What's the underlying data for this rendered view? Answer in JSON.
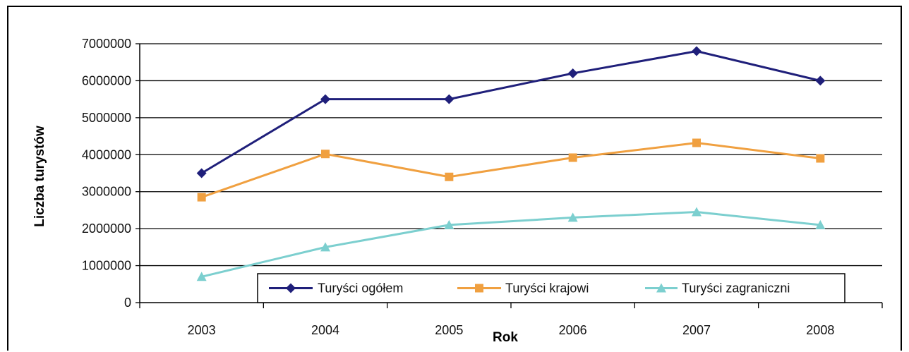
{
  "chart_data": {
    "type": "line",
    "title": "",
    "xlabel": "Rok",
    "ylabel": "Liczba turystów",
    "ylim": [
      0,
      7000000
    ],
    "yticks": [
      "0",
      "1000000",
      "2000000",
      "3000000",
      "4000000",
      "5000000",
      "6000000",
      "7000000"
    ],
    "categories": [
      "2003",
      "2004",
      "2005",
      "2006",
      "2007",
      "2008"
    ],
    "grid": "horizontal",
    "legend_position": "bottom-right",
    "series": [
      {
        "name": "Turyści ogółem",
        "color": "#1f1f7a",
        "marker": "diamond",
        "values": [
          3500000,
          5500000,
          5500000,
          6200000,
          6800000,
          6000000
        ]
      },
      {
        "name": "Turyści krajowi",
        "color": "#f0a040",
        "marker": "square",
        "values": [
          2850000,
          4020000,
          3400000,
          3920000,
          4320000,
          3900000
        ]
      },
      {
        "name": "Turyści zagraniczni",
        "color": "#7ccfcf",
        "marker": "triangle",
        "values": [
          700000,
          1500000,
          2100000,
          2300000,
          2450000,
          2100000
        ]
      }
    ]
  }
}
